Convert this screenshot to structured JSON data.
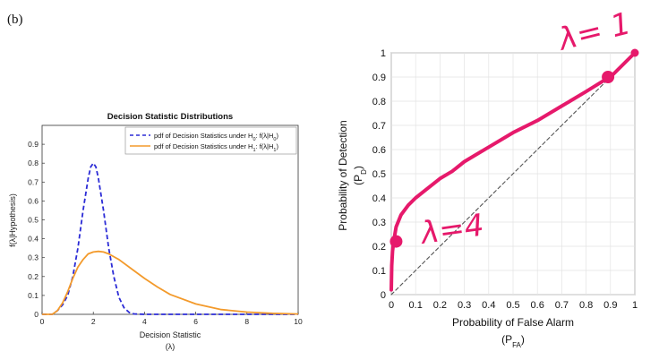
{
  "panel_label": "(b)",
  "chart_data": [
    {
      "type": "line",
      "title": "Decision Statistic Distributions",
      "xlabel": "Decision Statistic",
      "xlabel_sub": "(λ)",
      "ylabel": "f(λ|Hypothesis)",
      "xlim": [
        0,
        10
      ],
      "ylim": [
        0,
        1
      ],
      "xticks": [
        "0",
        "2",
        "4",
        "6",
        "8",
        "10"
      ],
      "yticks": [
        "0",
        "0.1",
        "0.2",
        "0.3",
        "0.4",
        "0.5",
        "0.6",
        "0.7",
        "0.8",
        "0.9"
      ],
      "legend_position": "top-right",
      "grid": false,
      "series": [
        {
          "name": "pdf of Decision Statistics under H0: f(λ|H0)",
          "color": "#2b2bd6",
          "style": "dashed",
          "x": [
            0,
            0.4,
            0.6,
            0.8,
            1.0,
            1.2,
            1.4,
            1.6,
            1.8,
            1.9,
            2.0,
            2.1,
            2.2,
            2.4,
            2.6,
            2.8,
            3.0,
            3.2,
            3.4,
            3.6,
            4.0,
            5.0,
            10.0
          ],
          "y": [
            0,
            0.0,
            0.02,
            0.05,
            0.1,
            0.2,
            0.35,
            0.55,
            0.72,
            0.78,
            0.8,
            0.78,
            0.72,
            0.55,
            0.35,
            0.2,
            0.09,
            0.035,
            0.01,
            0.002,
            0,
            0,
            0
          ]
        },
        {
          "name": "pdf of Decision Statistics under H1: f(λ|H1)",
          "color": "#f39a2b",
          "style": "solid",
          "x": [
            0,
            0.4,
            0.6,
            0.8,
            1.0,
            1.2,
            1.4,
            1.6,
            1.8,
            2.0,
            2.2,
            2.4,
            2.6,
            3.0,
            3.5,
            4.0,
            4.5,
            5.0,
            6.0,
            7.0,
            8.0,
            9.0,
            10.0
          ],
          "y": [
            0,
            0.0,
            0.02,
            0.06,
            0.12,
            0.19,
            0.25,
            0.29,
            0.32,
            0.33,
            0.333,
            0.33,
            0.32,
            0.29,
            0.24,
            0.19,
            0.145,
            0.105,
            0.055,
            0.025,
            0.012,
            0.005,
            0.002
          ]
        }
      ],
      "legend": {
        "h0": {
          "prefix": "pdf of Decision Statistics under H",
          "sub1": "0",
          "mid": ": f(λ|H",
          "sub2": "0",
          "suffix": ")"
        },
        "h1": {
          "prefix": "pdf of Decision Statistics under H",
          "sub1": "1",
          "mid": ": f(λ|H",
          "sub2": "1",
          "suffix": ")"
        }
      }
    },
    {
      "type": "line",
      "title": "",
      "xlabel": "Probability of False Alarm",
      "xlabel_sub": "(P",
      "xlabel_sub_subscript": "FA",
      "xlabel_sub_end": ")",
      "ylabel": "Probability of Detection",
      "ylabel_sub": "(P",
      "ylabel_sub_subscript": "D",
      "ylabel_sub_end": ")",
      "xlim": [
        0,
        1
      ],
      "ylim": [
        0,
        1
      ],
      "xticks": [
        "0",
        "0.1",
        "0.2",
        "0.3",
        "0.4",
        "0.5",
        "0.6",
        "0.7",
        "0.8",
        "0.9",
        "1"
      ],
      "yticks": [
        "0",
        "0.1",
        "0.2",
        "0.3",
        "0.4",
        "0.5",
        "0.6",
        "0.7",
        "0.8",
        "0.9",
        "1"
      ],
      "grid": true,
      "series": [
        {
          "color": "#e6196b",
          "style": "solid",
          "x": [
            0.0,
            0.002,
            0.005,
            0.01,
            0.02,
            0.04,
            0.07,
            0.1,
            0.15,
            0.2,
            0.25,
            0.3,
            0.35,
            0.4,
            0.5,
            0.6,
            0.7,
            0.8,
            0.88,
            0.9,
            1.0
          ],
          "y": [
            0.02,
            0.12,
            0.18,
            0.22,
            0.28,
            0.33,
            0.37,
            0.4,
            0.44,
            0.48,
            0.51,
            0.55,
            0.58,
            0.61,
            0.67,
            0.72,
            0.78,
            0.84,
            0.89,
            0.9,
            1.0
          ]
        },
        {
          "color": "#555555",
          "style": "dashed",
          "x": [
            0,
            1
          ],
          "y": [
            0,
            1
          ]
        }
      ],
      "markers": [
        {
          "x": 0.02,
          "y": 0.22
        },
        {
          "x": 0.89,
          "y": 0.9
        },
        {
          "x": 1.0,
          "y": 1.0
        }
      ],
      "annotations": [
        {
          "text": "λ=4"
        },
        {
          "text": "λ= 1"
        }
      ]
    }
  ]
}
